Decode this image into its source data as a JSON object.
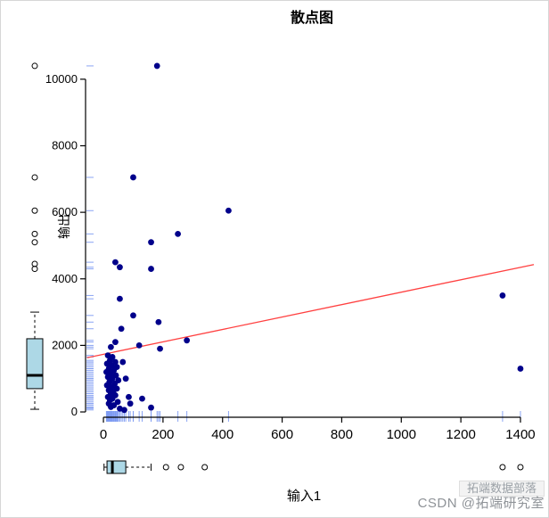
{
  "watermark": {
    "badge": "拓端数据部落",
    "credit": "CSDN @拓端研究室"
  },
  "chart_data": {
    "type": "scatter",
    "title": "散点图",
    "xlabel": "输入1",
    "ylabel": "输出",
    "xlim": [
      -60,
      1445
    ],
    "ylim": [
      -160,
      10800
    ],
    "x_ticks": [
      0,
      200,
      400,
      600,
      800,
      1000,
      1200,
      1400
    ],
    "y_ticks": [
      0,
      2000,
      4000,
      6000,
      8000,
      10000
    ],
    "grid": false,
    "legend": false,
    "point_color": "#00008B",
    "rug_color": "#7E9BF2",
    "box_fill": "#ADD8E6",
    "axis_color": "#000000",
    "regression_line": {
      "color": "#FF4040",
      "x1": -55,
      "y1": 1630,
      "x2": 1445,
      "y2": 4430
    },
    "points": [
      [
        180,
        10400
      ],
      [
        100,
        7050
      ],
      [
        420,
        6050
      ],
      [
        250,
        5350
      ],
      [
        160,
        5100
      ],
      [
        40,
        4500
      ],
      [
        55,
        4350
      ],
      [
        160,
        4300
      ],
      [
        1340,
        3500
      ],
      [
        55,
        3400
      ],
      [
        100,
        2900
      ],
      [
        185,
        2700
      ],
      [
        60,
        2500
      ],
      [
        280,
        2150
      ],
      [
        40,
        2100
      ],
      [
        120,
        2000
      ],
      [
        25,
        1950
      ],
      [
        190,
        1900
      ],
      [
        15,
        1700
      ],
      [
        30,
        1650
      ],
      [
        65,
        1500
      ],
      [
        22,
        1550
      ],
      [
        40,
        1500
      ],
      [
        12,
        1450
      ],
      [
        28,
        1400
      ],
      [
        45,
        1350
      ],
      [
        18,
        1300
      ],
      [
        35,
        1250
      ],
      [
        10,
        1200
      ],
      [
        25,
        1150
      ],
      [
        42,
        1100
      ],
      [
        15,
        1050
      ],
      [
        30,
        1000
      ],
      [
        75,
        1000
      ],
      [
        50,
        950
      ],
      [
        20,
        900
      ],
      [
        38,
        850
      ],
      [
        12,
        800
      ],
      [
        28,
        750
      ],
      [
        45,
        700
      ],
      [
        18,
        650
      ],
      [
        33,
        600
      ],
      [
        25,
        550
      ],
      [
        40,
        500
      ],
      [
        85,
        450
      ],
      [
        15,
        450
      ],
      [
        30,
        400
      ],
      [
        130,
        400
      ],
      [
        22,
        350
      ],
      [
        48,
        300
      ],
      [
        90,
        250
      ],
      [
        18,
        250
      ],
      [
        35,
        200
      ],
      [
        25,
        150
      ],
      [
        160,
        130
      ],
      [
        55,
        100
      ],
      [
        70,
        60
      ],
      [
        1400,
        1300
      ]
    ],
    "marginal_boxplot_y": {
      "orientation": "vertical",
      "whisker_low": 80,
      "q1": 700,
      "median": 1100,
      "q3": 2200,
      "whisker_high": 3000,
      "outliers": [
        4300,
        4450,
        5100,
        5350,
        6050,
        7050,
        10400
      ]
    },
    "marginal_boxplot_x": {
      "orientation": "horizontal",
      "whisker_low": 2,
      "q1": 12,
      "median": 30,
      "q3": 75,
      "whisker_high": 160,
      "outliers": [
        210,
        260,
        340,
        1340,
        1400
      ]
    }
  }
}
